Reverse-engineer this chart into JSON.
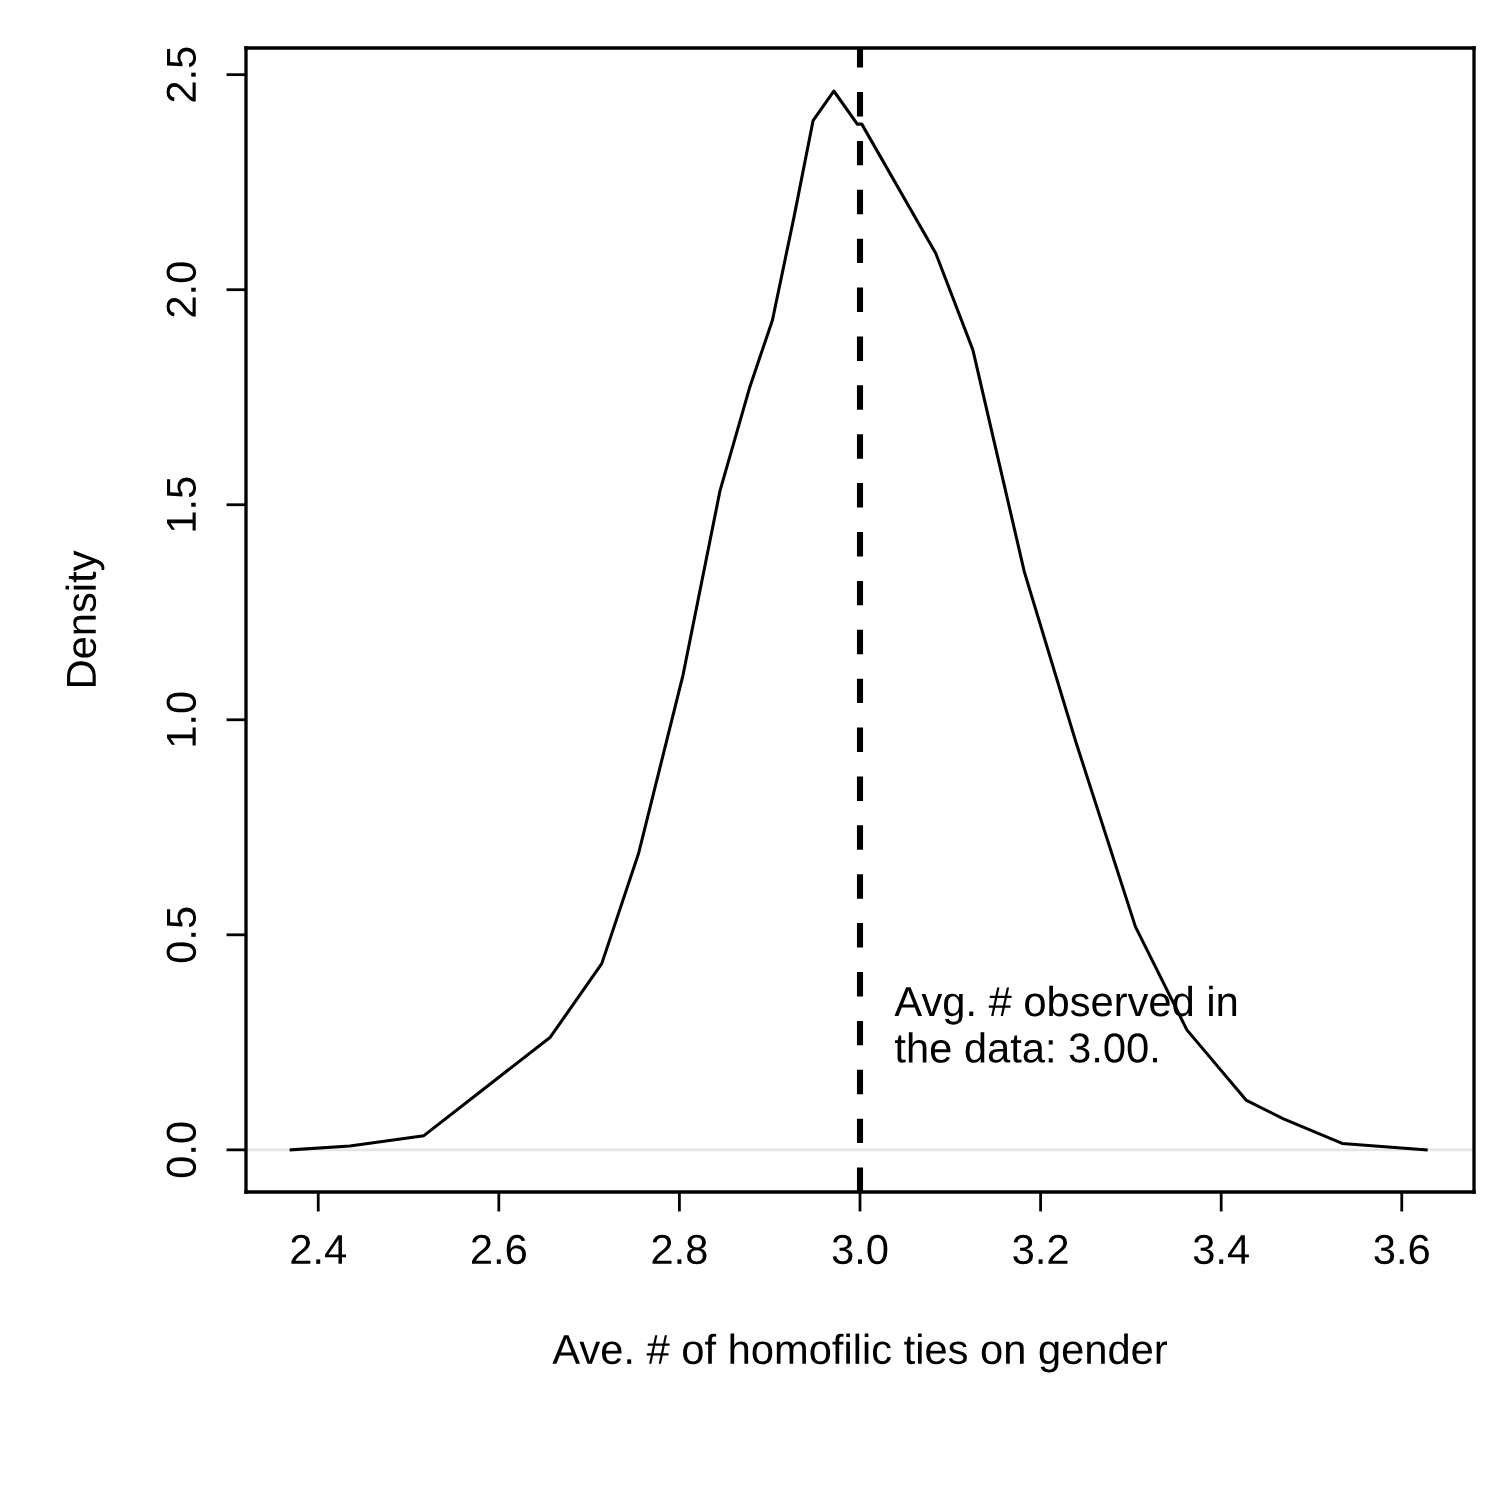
{
  "chart_data": {
    "type": "line",
    "xlabel": "Ave. # of homofilic ties on gender",
    "ylabel": "Density",
    "x": [
      2.37,
      2.435,
      2.517,
      2.583,
      2.657,
      2.714,
      2.755,
      2.804,
      2.845,
      2.878,
      2.903,
      2.927,
      2.948,
      2.971,
      2.997,
      3.002,
      3.084,
      3.125,
      3.182,
      3.239,
      3.305,
      3.362,
      3.428,
      3.469,
      3.534,
      3.627
    ],
    "series": [
      {
        "color": "#000000",
        "values": [
          0.0,
          0.009,
          0.033,
          0.141,
          0.262,
          0.433,
          0.691,
          1.104,
          1.533,
          1.774,
          1.929,
          2.17,
          2.393,
          2.462,
          2.385,
          2.385,
          2.084,
          1.86,
          1.344,
          0.949,
          0.519,
          0.279,
          0.115,
          0.072,
          0.015,
          0.0
        ]
      }
    ],
    "xlim": [
      2.32,
      3.68
    ],
    "ylim": [
      -0.098,
      2.562
    ],
    "xticks": [
      2.4,
      2.6,
      2.8,
      {
        "value": 3,
        "label": "3.0"
      },
      3.2,
      3.4,
      3.6
    ],
    "yticks": [
      {
        "value": 0,
        "label": "0.0"
      },
      0.5,
      {
        "value": 1,
        "label": "1.0"
      },
      1.5,
      {
        "value": 2,
        "label": "2.0"
      },
      2.5
    ],
    "ref_lines": [
      {
        "axis": "y",
        "value": 0,
        "color": "#e6e6e6",
        "line_style": "solid"
      },
      {
        "axis": "x",
        "value": 3.0,
        "color": "#000000",
        "line_style": "dashed"
      }
    ],
    "annotations": [
      "Avg. # observed in\nthe data: 3.00."
    ],
    "grid": false,
    "legend": false,
    "marker": "none",
    "line_style": "solid"
  }
}
